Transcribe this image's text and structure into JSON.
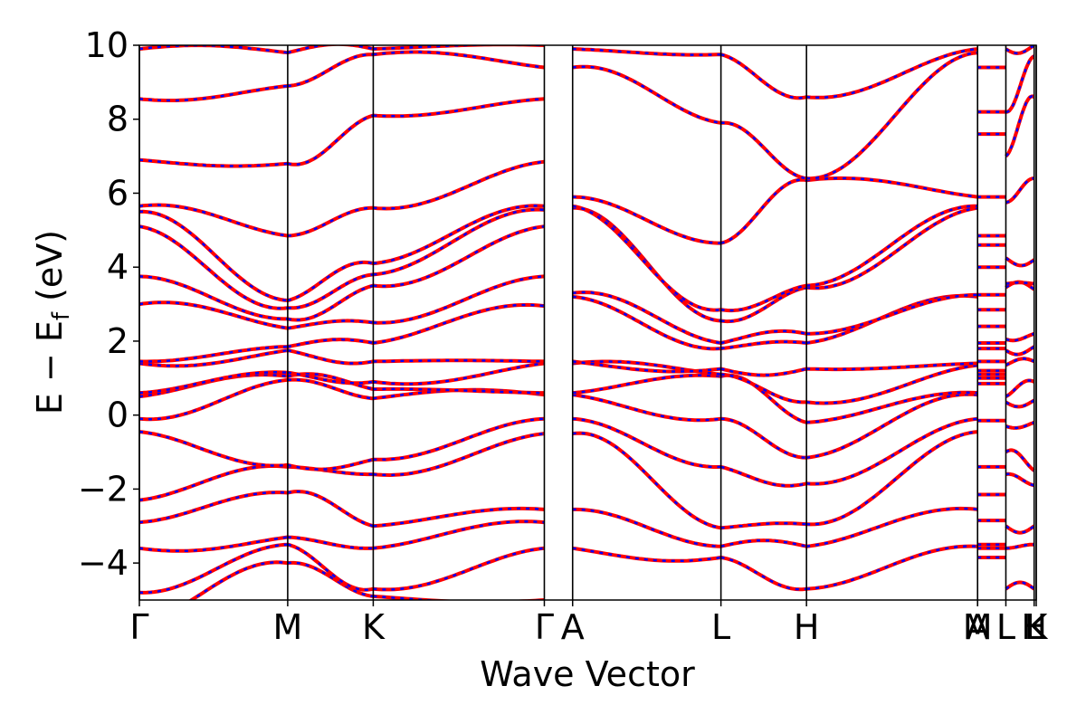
{
  "chart_data": {
    "type": "line",
    "title": "",
    "xlabel": "Wave Vector",
    "ylabel_parts": {
      "main": "E − E",
      "sub": "f",
      "unit": " (eV)"
    },
    "ylabel": "E − E_f (eV)",
    "ylim": [
      -5,
      10
    ],
    "xlim": [
      0,
      6.5
    ],
    "grid": false,
    "y_ticks": [
      -4,
      -2,
      0,
      2,
      4,
      6,
      8,
      10
    ],
    "y_tick_labels": [
      "−4",
      "−2",
      "0",
      "2",
      "4",
      "6",
      "8",
      "10"
    ],
    "kpoint_lines": [
      0,
      1.075,
      1.695,
      2.935,
      3.14,
      4.215,
      4.835,
      6.075,
      6.28,
      6.485,
      6.5
    ],
    "kpoint_labels": [
      {
        "x": 0,
        "label": "Γ"
      },
      {
        "x": 1.075,
        "label": "M"
      },
      {
        "x": 1.695,
        "label": "K"
      },
      {
        "x": 2.935,
        "label": "Γ"
      },
      {
        "x": 3.14,
        "label": "A"
      },
      {
        "x": 4.215,
        "label": "L"
      },
      {
        "x": 4.835,
        "label": "H"
      },
      {
        "x": 6.075,
        "label": "A"
      },
      {
        "x": 6.075,
        "label": "M"
      },
      {
        "x": 6.28,
        "label": "L"
      },
      {
        "x": 6.485,
        "label": "H"
      },
      {
        "x": 6.485,
        "label": "L"
      },
      {
        "x": 6.5,
        "label": "K"
      }
    ],
    "colors": {
      "series_a": "#ff0000",
      "series_b": "#0000ff",
      "kline": "#000000"
    },
    "segments": [
      {
        "x0": 0,
        "x1": 1.075,
        "start": [
          -5.6,
          -4.8,
          -3.6,
          -2.9,
          -2.3,
          -0.45,
          -0.1,
          0.5,
          0.6,
          1.4,
          1.45,
          3.0,
          3.75,
          5.1,
          5.5,
          5.65,
          6.9,
          8.55,
          9.9
        ],
        "end": [
          -4.0,
          -3.5,
          -3.3,
          -2.1,
          -1.4,
          -1.35,
          0.95,
          1.05,
          1.15,
          1.75,
          1.85,
          2.35,
          2.6,
          2.9,
          3.1,
          4.85,
          6.8,
          8.9,
          9.8
        ]
      },
      {
        "x0": 1.075,
        "x1": 1.695,
        "start": [
          -4.0,
          -3.5,
          -3.3,
          -2.1,
          -1.4,
          -1.35,
          0.95,
          1.05,
          1.15,
          1.75,
          1.85,
          2.35,
          2.6,
          2.9,
          3.1,
          4.85,
          6.8,
          8.9,
          9.8
        ],
        "end": [
          -4.9,
          -4.7,
          -3.6,
          -3.0,
          -1.6,
          -1.2,
          0.45,
          0.7,
          0.9,
          1.45,
          1.95,
          2.5,
          3.5,
          3.8,
          4.1,
          5.6,
          8.1,
          9.75,
          9.9
        ]
      },
      {
        "x0": 1.695,
        "x1": 2.935,
        "start": [
          -4.9,
          -4.7,
          -3.6,
          -3.0,
          -1.6,
          -1.2,
          0.45,
          0.7,
          0.9,
          1.45,
          1.95,
          2.5,
          3.5,
          3.8,
          4.1,
          5.6,
          8.1,
          9.75,
          9.9
        ],
        "end": [
          -5.0,
          -3.6,
          -2.9,
          -2.55,
          -0.5,
          -0.1,
          0.55,
          0.6,
          1.4,
          1.45,
          2.95,
          3.75,
          5.1,
          5.55,
          5.65,
          6.85,
          8.55,
          9.4,
          10.0
        ]
      },
      {
        "x0": 3.14,
        "x1": 4.215,
        "start": [
          -3.6,
          -2.55,
          -0.5,
          -0.1,
          0.55,
          0.6,
          1.4,
          1.45,
          3.2,
          3.3,
          5.6,
          5.65,
          5.9,
          9.4,
          9.9
        ],
        "end": [
          -3.85,
          -3.55,
          -3.05,
          -1.4,
          -0.1,
          1.05,
          1.1,
          1.25,
          1.8,
          1.95,
          2.55,
          2.85,
          4.65,
          7.9,
          9.75
        ]
      },
      {
        "x0": 4.215,
        "x1": 4.835,
        "start": [
          -3.85,
          -3.55,
          -3.05,
          -1.4,
          -0.1,
          1.05,
          1.1,
          1.25,
          1.8,
          1.95,
          2.55,
          2.85,
          4.65,
          7.9,
          9.75
        ],
        "end": [
          -4.7,
          -3.55,
          -2.95,
          -1.85,
          -1.15,
          -0.2,
          0.35,
          1.25,
          1.95,
          2.2,
          3.45,
          3.5,
          6.35,
          6.4,
          8.6
        ]
      },
      {
        "x0": 4.835,
        "x1": 6.075,
        "start": [
          -4.7,
          -3.55,
          -2.95,
          -1.85,
          -1.15,
          -0.2,
          0.35,
          1.25,
          1.95,
          2.2,
          3.45,
          3.5,
          6.35,
          6.4,
          8.6
        ],
        "end": [
          -3.55,
          -2.55,
          -0.45,
          -0.1,
          0.55,
          0.6,
          1.35,
          1.4,
          3.2,
          3.25,
          5.6,
          5.65,
          5.9,
          9.8,
          9.9
        ]
      },
      {
        "x0": 6.28,
        "x1": 6.485,
        "start": [
          -4.7,
          -3.6,
          -3.0,
          -1.6,
          -1.0,
          -0.3,
          0.35,
          0.5,
          1.35,
          1.75,
          2.05,
          3.45,
          3.55,
          4.25,
          5.75,
          7.0,
          8.2,
          9.9
        ],
        "end": [
          -4.7,
          -3.5,
          -3.0,
          -1.9,
          -1.5,
          -0.2,
          0.4,
          0.9,
          1.45,
          1.85,
          2.2,
          3.4,
          3.55,
          4.2,
          6.4,
          8.6,
          9.7,
          10.0
        ]
      }
    ],
    "column_bands": {
      "x0": 6.075,
      "x1": 6.28,
      "values": [
        -3.85,
        -3.6,
        -3.5,
        -2.85,
        -2.15,
        -1.4,
        -0.15,
        0.85,
        1.0,
        1.1,
        1.2,
        1.45,
        1.8,
        1.95,
        2.4,
        2.85,
        3.25,
        4.0,
        4.6,
        4.85,
        5.9,
        7.6,
        8.2,
        9.4
      ]
    },
    "series": [
      {
        "name": "",
        "color": "#ff0000"
      },
      {
        "name": "",
        "color": "#0000ff"
      }
    ]
  }
}
